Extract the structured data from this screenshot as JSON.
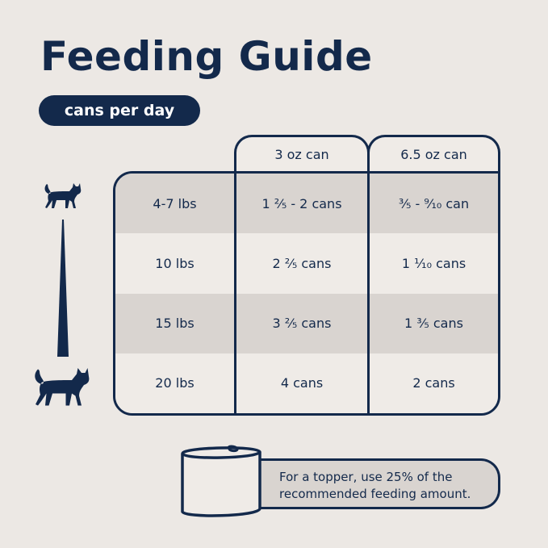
{
  "title": "Feeding Guide",
  "subtitle_pill": "cans per day",
  "colors": {
    "navy": "#13294b",
    "background": "#ece8e4",
    "shaded_row": "#d9d4d0"
  },
  "icons": {
    "small_cat": "cat-small-icon",
    "large_cat": "cat-large-icon",
    "weight_scale": "wedge-icon",
    "can": "can-icon"
  },
  "table": {
    "columns": [
      "3 oz can",
      "6.5 oz can"
    ],
    "rows": [
      {
        "weight": "4-7 lbs",
        "oz3": "1 ²⁄₅ - 2 cans",
        "oz65": "³⁄₅ - ⁹⁄₁₀ can"
      },
      {
        "weight": "10 lbs",
        "oz3": "2 ²⁄₅ cans",
        "oz65": "1 ¹⁄₁₀ cans"
      },
      {
        "weight": "15 lbs",
        "oz3": "3 ²⁄₅ cans",
        "oz65": "1 ³⁄₅ cans"
      },
      {
        "weight": "20 lbs",
        "oz3": "4 cans",
        "oz65": "2 cans"
      }
    ]
  },
  "note": "For a topper, use 25% of the recommended feeding amount."
}
